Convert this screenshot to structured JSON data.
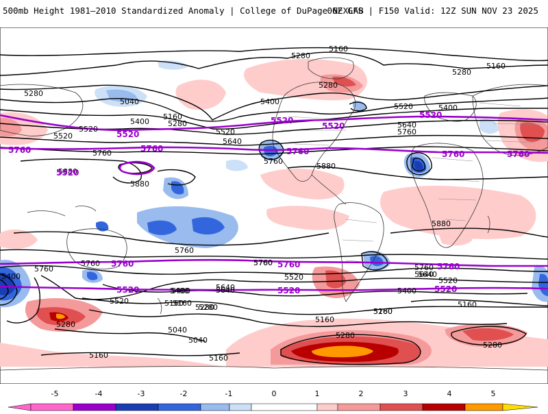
{
  "header": {
    "title": "500mb Height 1981–2010 Standardized Anomaly | College of DuPage NEXLAB",
    "run_info": "06Z GFS | F150 Valid: 12Z SUN NOV 23 2025"
  },
  "colors": {
    "contour": "#000000",
    "highlight_contour": "#9900cc",
    "coast": "#333333",
    "border": "#888888"
  },
  "legend": {
    "ticks": [
      "-5",
      "-4",
      "-3",
      "-2",
      "-1",
      "0",
      "1",
      "2",
      "3",
      "4",
      "5"
    ],
    "colors": [
      "#ff66cc",
      "#9900cc",
      "#1a3db3",
      "#3366dd",
      "#99bbee",
      "#cce0f7",
      "#ffffff",
      "#ffcccc",
      "#f59a9a",
      "#e05050",
      "#b80000",
      "#ff9900",
      "#ffdd00"
    ]
  },
  "map": {
    "contour_labels": [
      "5280",
      "5160",
      "5280",
      "5160",
      "5280",
      "5040",
      "5400",
      "5160",
      "5280",
      "5520",
      "5400",
      "5640",
      "5760",
      "5520",
      "5280",
      "5400",
      "5520",
      "5640",
      "5760",
      "5520",
      "5760",
      "5880",
      "5880",
      "5760",
      "5760",
      "5880",
      "5880",
      "5760",
      "5640",
      "5760",
      "5760",
      "5400",
      "5520",
      "5640",
      "5280",
      "5160",
      "5040",
      "5160",
      "5280",
      "5160",
      "5040",
      "5400",
      "5520",
      "5280",
      "5160",
      "5760",
      "5640",
      "5520",
      "5400",
      "5280",
      "5160",
      "5640",
      "5280",
      "5160",
      "5400",
      "5160",
      "5280"
    ],
    "highlight_labels": [
      "5520",
      "5760",
      "5520",
      "5760",
      "5520",
      "5760",
      "5520",
      "5760",
      "5520",
      "5760",
      "5520",
      "5760",
      "5520",
      "5760",
      "5520",
      "5760"
    ]
  }
}
